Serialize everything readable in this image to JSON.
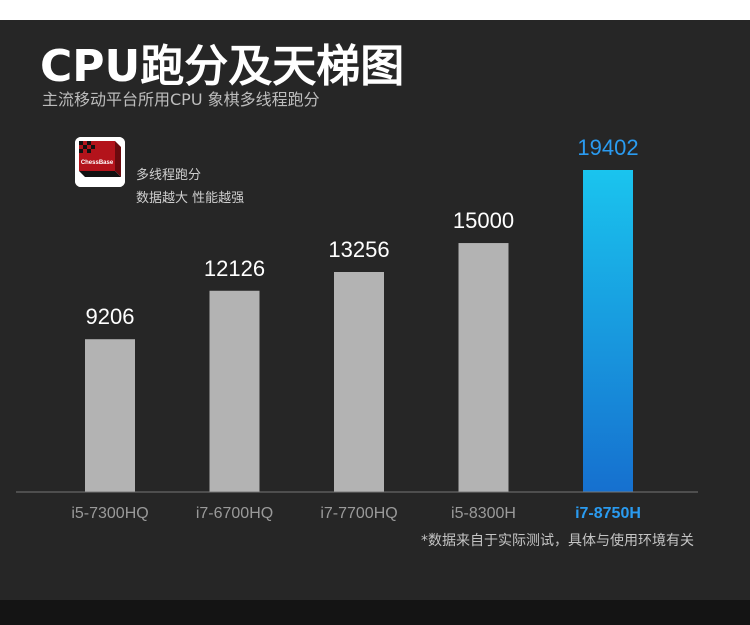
{
  "header": {
    "title": "CPU跑分及天梯图",
    "subtitle": "主流移动平台所用CPU 象棋多线程跑分"
  },
  "legend": {
    "logo_text": "ChessBase",
    "line1": "多线程跑分",
    "line2": "数据越大 性能越强"
  },
  "footnote": "*数据来自于实际测试，具体与使用环境有关",
  "colors": {
    "background": "#262626",
    "bar_default": "#b3b3b3",
    "highlight_top": "#1ac4ee",
    "highlight_bottom": "#1670cf",
    "highlight_text": "#2a9bf0"
  },
  "chart_data": {
    "type": "bar",
    "categories": [
      "i5-7300HQ",
      "i7-6700HQ",
      "i7-7700HQ",
      "i5-8300H",
      "i7-8750H"
    ],
    "values": [
      9206,
      12126,
      13256,
      15000,
      19402
    ],
    "value_labels": [
      "9206",
      "12126",
      "13256",
      "15000",
      "19402"
    ],
    "highlight_index": 4,
    "ylim": [
      0,
      19402
    ]
  }
}
